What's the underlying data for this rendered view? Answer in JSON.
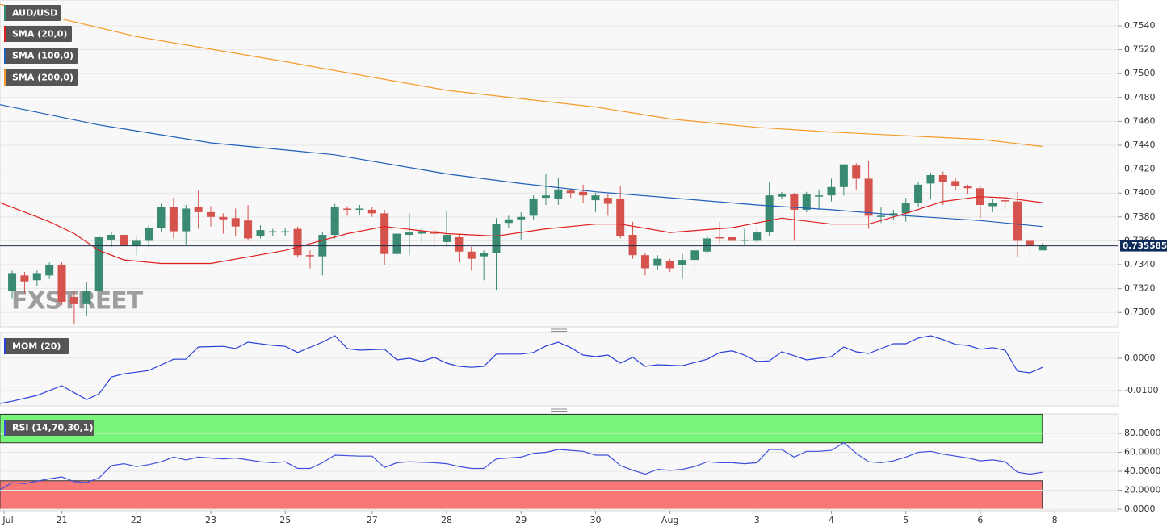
{
  "chart_data": [
    {
      "type": "candlestick",
      "title": "AUD/USD",
      "watermark": "FXSTREET",
      "up_color": "#3a8a73",
      "down_color": "#d6524c",
      "grid": true,
      "xlim": [
        -0.98,
        89.13
      ],
      "ylim": [
        0.7288,
        0.75616
      ],
      "yticks": [
        {
          "value": 0.73,
          "label": "0.7300"
        },
        {
          "value": 0.732,
          "label": "0.7320"
        },
        {
          "value": 0.734,
          "label": "0.7340"
        },
        {
          "value": 0.736,
          "label": "0.7360"
        },
        {
          "value": 0.738,
          "label": "0.7380"
        },
        {
          "value": 0.74,
          "label": "0.7400"
        },
        {
          "value": 0.742,
          "label": "0.7420"
        },
        {
          "value": 0.744,
          "label": "0.7440"
        },
        {
          "value": 0.746,
          "label": "0.7460"
        },
        {
          "value": 0.748,
          "label": "0.7480"
        },
        {
          "value": 0.75,
          "label": "0.7500"
        },
        {
          "value": 0.752,
          "label": "0.7520"
        },
        {
          "value": 0.754,
          "label": "0.7540"
        }
      ],
      "last_price": 0.735585,
      "open": [
        0.7318,
        0.7331,
        0.7327,
        0.7331,
        0.734,
        0.7313,
        0.7307,
        0.7318,
        0.7361,
        0.7365,
        0.7356,
        0.736,
        0.7371,
        0.7388,
        0.7368,
        0.7388,
        0.7384,
        0.738,
        0.7379,
        0.7377,
        0.7364,
        0.7367,
        0.7367,
        0.737,
        0.7348,
        0.7347,
        0.7365,
        0.7387,
        0.7386,
        0.7386,
        0.7383,
        0.7349,
        0.7365,
        0.7366,
        0.7368,
        0.7359,
        0.7363,
        0.7351,
        0.7347,
        0.735,
        0.7375,
        0.7378,
        0.7381,
        0.7396,
        0.7395,
        0.7402,
        0.7401,
        0.7394,
        0.7396,
        0.7395,
        0.7365,
        0.7348,
        0.7339,
        0.7343,
        0.734,
        0.7344,
        0.7351,
        0.7363,
        0.7363,
        0.736,
        0.736,
        0.7367,
        0.7397,
        0.7399,
        0.7386,
        0.7397,
        0.7398,
        0.7405,
        0.7423,
        0.7412,
        0.738,
        0.7381,
        0.7383,
        0.7392,
        0.7408,
        0.7415,
        0.741,
        0.7406,
        0.7404,
        0.7389,
        0.7394,
        0.7393,
        0.736,
        0.7352
      ],
      "high": [
        0.7335,
        0.7334,
        0.7335,
        0.7342,
        0.7342,
        0.7318,
        0.7325,
        0.7365,
        0.7367,
        0.7367,
        0.7364,
        0.7373,
        0.7391,
        0.7396,
        0.739,
        0.7402,
        0.7389,
        0.7383,
        0.7387,
        0.739,
        0.7373,
        0.737,
        0.7371,
        0.7372,
        0.7352,
        0.7367,
        0.7391,
        0.7389,
        0.739,
        0.7388,
        0.7386,
        0.7368,
        0.7383,
        0.7371,
        0.737,
        0.7385,
        0.7366,
        0.7355,
        0.7352,
        0.7379,
        0.7381,
        0.7384,
        0.7398,
        0.7416,
        0.7413,
        0.7404,
        0.7407,
        0.74,
        0.7399,
        0.7406,
        0.7376,
        0.735,
        0.7348,
        0.7345,
        0.7349,
        0.7357,
        0.7364,
        0.7376,
        0.7369,
        0.737,
        0.737,
        0.7409,
        0.7401,
        0.74,
        0.7401,
        0.7403,
        0.7412,
        0.7424,
        0.7425,
        0.7427,
        0.7388,
        0.7386,
        0.7396,
        0.7409,
        0.7417,
        0.7418,
        0.7413,
        0.7407,
        0.7406,
        0.7395,
        0.7397,
        0.7401,
        0.7361,
        0.7358
      ],
      "low": [
        0.7312,
        0.7316,
        0.7322,
        0.7328,
        0.7306,
        0.729,
        0.7297,
        0.7316,
        0.7355,
        0.7352,
        0.7348,
        0.7355,
        0.7368,
        0.7362,
        0.7357,
        0.737,
        0.7372,
        0.7366,
        0.7364,
        0.736,
        0.7362,
        0.7364,
        0.7364,
        0.7346,
        0.7337,
        0.7331,
        0.7362,
        0.7381,
        0.7382,
        0.738,
        0.734,
        0.7335,
        0.7348,
        0.7359,
        0.7355,
        0.7355,
        0.7342,
        0.7335,
        0.7327,
        0.7319,
        0.7371,
        0.7361,
        0.7378,
        0.739,
        0.739,
        0.7396,
        0.7392,
        0.7384,
        0.7381,
        0.7362,
        0.7345,
        0.7331,
        0.7336,
        0.7334,
        0.7328,
        0.7336,
        0.7349,
        0.7358,
        0.7357,
        0.7357,
        0.7358,
        0.7364,
        0.7395,
        0.736,
        0.7384,
        0.7386,
        0.7393,
        0.7398,
        0.7403,
        0.737,
        0.7375,
        0.7377,
        0.7376,
        0.7388,
        0.7395,
        0.739,
        0.7402,
        0.7399,
        0.7379,
        0.7384,
        0.7386,
        0.7346,
        0.7349,
        0.7352
      ],
      "close": [
        0.7333,
        0.7326,
        0.7333,
        0.734,
        0.7309,
        0.7307,
        0.7318,
        0.7363,
        0.7365,
        0.7356,
        0.736,
        0.7371,
        0.7388,
        0.7368,
        0.7387,
        0.7384,
        0.738,
        0.7378,
        0.7372,
        0.7362,
        0.7369,
        0.7368,
        0.7368,
        0.7348,
        0.7347,
        0.7365,
        0.7388,
        0.7386,
        0.7387,
        0.7383,
        0.7349,
        0.7366,
        0.7367,
        0.7368,
        0.7366,
        0.7365,
        0.7351,
        0.7345,
        0.735,
        0.7374,
        0.7378,
        0.738,
        0.7395,
        0.7398,
        0.7403,
        0.74,
        0.7398,
        0.7398,
        0.7391,
        0.7364,
        0.7348,
        0.7337,
        0.7345,
        0.7337,
        0.7344,
        0.7352,
        0.7362,
        0.7362,
        0.736,
        0.7361,
        0.7367,
        0.7398,
        0.7399,
        0.7386,
        0.7399,
        0.7398,
        0.7405,
        0.7424,
        0.7412,
        0.7381,
        0.7381,
        0.7383,
        0.7392,
        0.7407,
        0.7415,
        0.7409,
        0.7406,
        0.7404,
        0.739,
        0.7392,
        0.7393,
        0.736,
        0.7356,
        0.7356
      ],
      "series": [
        {
          "name": "SMA (20,0)",
          "color": "#e02020",
          "x": [
            -0.98,
            3,
            5,
            7,
            9,
            12,
            16,
            22,
            27,
            30,
            35,
            39,
            43,
            47,
            49,
            53,
            58,
            62,
            66,
            69,
            72,
            75,
            78,
            80,
            83
          ],
          "values": [
            0.7392,
            0.7376,
            0.7366,
            0.7352,
            0.7344,
            0.7341,
            0.7341,
            0.7352,
            0.7366,
            0.7372,
            0.7366,
            0.7364,
            0.737,
            0.7374,
            0.7374,
            0.7367,
            0.7371,
            0.7379,
            0.7374,
            0.7374,
            0.7383,
            0.7393,
            0.7397,
            0.7396,
            0.7392
          ]
        },
        {
          "name": "SMA (100,0)",
          "color": "#1f5fb8",
          "x": [
            -0.98,
            7,
            16,
            26,
            35,
            41,
            47,
            53,
            60,
            66,
            72,
            78,
            83
          ],
          "values": [
            0.7474,
            0.7457,
            0.7442,
            0.7432,
            0.7416,
            0.7408,
            0.7401,
            0.7396,
            0.739,
            0.7386,
            0.7381,
            0.7377,
            0.7372
          ]
        },
        {
          "name": "SMA (200,0)",
          "color": "#f59a28",
          "x": [
            -0.98,
            10,
            22,
            35,
            47,
            53,
            60,
            66,
            72,
            78,
            83
          ],
          "values": [
            0.7558,
            0.7531,
            0.751,
            0.7486,
            0.7472,
            0.7462,
            0.7455,
            0.7451,
            0.7448,
            0.7445,
            0.7439
          ]
        }
      ]
    },
    {
      "type": "line",
      "grid": true,
      "xlim": [
        -0.98,
        89.13
      ],
      "ylim": [
        -0.01475,
        0.008
      ],
      "yticks": [
        {
          "value": -0.01,
          "label": "-0.0100"
        },
        {
          "value": 0,
          "label": "0.0000"
        }
      ],
      "series": [
        {
          "name": "MOM (20)",
          "color": "#2a3fd8",
          "x": [
            -0.98,
            0,
            2,
            4,
            6,
            7,
            8,
            9,
            11,
            13,
            14,
            15,
            17,
            18,
            19,
            21,
            22,
            23,
            25,
            26,
            27,
            28,
            30,
            31,
            32,
            33,
            34,
            35,
            36,
            37,
            38,
            39,
            41,
            42,
            43,
            44,
            45,
            46,
            47,
            48,
            49,
            50,
            51,
            52,
            54,
            56,
            57,
            58,
            59,
            60,
            61,
            62,
            63,
            64,
            66,
            67,
            68,
            69,
            70,
            71,
            72,
            73,
            74,
            75,
            76,
            77,
            78,
            79,
            80,
            81,
            82,
            83
          ],
          "values": [
            -0.014,
            -0.0133,
            -0.0115,
            -0.0085,
            -0.0128,
            -0.011,
            -0.0058,
            -0.0048,
            -0.0038,
            -0.0003,
            -0.0003,
            0.0035,
            0.0037,
            0.003,
            0.005,
            0.004,
            0.0037,
            0.0018,
            0.005,
            0.007,
            0.003,
            0.0025,
            0.0028,
            -0.0005,
            0,
            -0.001,
            0.0003,
            -0.0015,
            -0.0025,
            -0.0028,
            -0.0025,
            0.0013,
            0.0013,
            0.0018,
            0.0038,
            0.005,
            0.0033,
            0.001,
            0.0005,
            0.001,
            -0.0015,
            0.0003,
            -0.0025,
            -0.002,
            -0.0023,
            -0.0003,
            0.0018,
            0.0023,
            0.001,
            -0.001,
            -0.0008,
            0.002,
            0.0008,
            -0.0005,
            0.0005,
            0.0035,
            0.002,
            0.0015,
            0.003,
            0.0045,
            0.0045,
            0.0063,
            0.007,
            0.0058,
            0.0043,
            0.004,
            0.0028,
            0.0033,
            0.0025,
            -0.004,
            -0.0045,
            -0.0028
          ]
        }
      ]
    },
    {
      "type": "line",
      "grid": true,
      "xlim": [
        -0.98,
        89.13
      ],
      "ylim": [
        -1.7,
        100.4
      ],
      "yticks": [
        {
          "value": 0,
          "label": "0.0000"
        },
        {
          "value": 20,
          "label": "20.0000"
        },
        {
          "value": 40,
          "label": "40.0000"
        },
        {
          "value": 60,
          "label": "60.0000"
        },
        {
          "value": 80,
          "label": "80.0000"
        }
      ],
      "bands": [
        {
          "from": 70,
          "to": 100,
          "color": "#78f578"
        },
        {
          "from": 0,
          "to": 30,
          "color": "#f87878"
        }
      ],
      "xticks": [
        {
          "value": -0.65,
          "label": "Jul"
        },
        {
          "value": 4,
          "label": "21"
        },
        {
          "value": 10,
          "label": "22"
        },
        {
          "value": 16,
          "label": "23"
        },
        {
          "value": 22,
          "label": "25"
        },
        {
          "value": 29,
          "label": "27"
        },
        {
          "value": 35,
          "label": "28"
        },
        {
          "value": 41,
          "label": "29"
        },
        {
          "value": 47,
          "label": "30"
        },
        {
          "value": 53,
          "label": "Aug"
        },
        {
          "value": 60,
          "label": "3"
        },
        {
          "value": 66,
          "label": "4"
        },
        {
          "value": 72,
          "label": "5"
        },
        {
          "value": 78,
          "label": "6"
        },
        {
          "value": 84,
          "label": "8"
        }
      ],
      "series": [
        {
          "name": "RSI (14,70,30,1)",
          "color": "#3f4fdc",
          "x": [
            -0.98,
            0,
            1,
            3,
            4,
            5,
            6,
            7,
            8,
            9,
            10,
            11,
            12,
            13,
            14,
            15,
            16,
            17,
            18,
            19,
            20,
            21,
            22,
            23,
            24,
            25,
            26,
            28,
            29,
            30,
            31,
            32,
            34,
            35,
            36,
            37,
            38,
            39,
            40,
            41,
            42,
            43,
            44,
            45,
            46,
            47,
            48,
            49,
            50,
            51,
            52,
            53,
            54,
            55,
            56,
            57,
            58,
            59,
            60,
            61,
            62,
            63,
            64,
            65,
            66,
            67,
            68,
            69,
            70,
            71,
            72,
            73,
            74,
            75,
            76,
            77,
            78,
            79,
            80,
            81,
            82,
            83
          ],
          "values": [
            20.4,
            28,
            27,
            32,
            34,
            29,
            28,
            33,
            46,
            48,
            45,
            47,
            50,
            55,
            52,
            55,
            54,
            53,
            54,
            52,
            50,
            49,
            50,
            43,
            43,
            49,
            57,
            56,
            56,
            44,
            49,
            50,
            49,
            48,
            45,
            43,
            43,
            53,
            54,
            55,
            59,
            60,
            63,
            62,
            61,
            57,
            57,
            46,
            41,
            37,
            42,
            41,
            42,
            45,
            50,
            49,
            49,
            48,
            49,
            63,
            63,
            55,
            61,
            61,
            62,
            70,
            59,
            50,
            49,
            51,
            55,
            60,
            61,
            58,
            56,
            54,
            51,
            52,
            50,
            39,
            37,
            39
          ]
        }
      ]
    }
  ]
}
